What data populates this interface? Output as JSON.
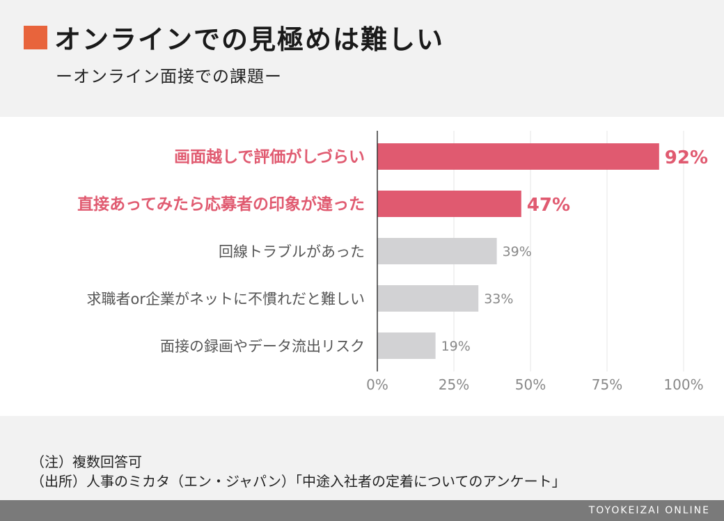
{
  "header": {
    "title": "オンラインでの見極めは難しい",
    "subtitle": "ーオンライン面接での課題ー",
    "accent_color": "#e8643c"
  },
  "chart_data": {
    "type": "bar",
    "orientation": "horizontal",
    "categories": [
      "画面越しで評価がしづらい",
      "直接あってみたら応募者の印象が違った",
      "回線トラブルがあった",
      "求職者or企業がネットに不慣れだと難しい",
      "面接の録画やデータ流出リスク"
    ],
    "values": [
      92,
      47,
      39,
      33,
      19
    ],
    "value_labels": [
      "92%",
      "47%",
      "39%",
      "33%",
      "19%"
    ],
    "highlighted": [
      true,
      true,
      false,
      false,
      false
    ],
    "highlight_color": "#e05a70",
    "base_color": "#d2d2d4",
    "xlim": [
      0,
      100
    ],
    "xticks": [
      0,
      25,
      50,
      75,
      100
    ],
    "xtick_labels": [
      "0%",
      "25%",
      "50%",
      "75%",
      "100%"
    ],
    "grid": true
  },
  "notes": {
    "line1": "（注）複数回答可",
    "line2": "（出所）人事のミカタ（エン・ジャパン）「中途入社者の定着についてのアンケート」"
  },
  "footer": {
    "brand": "TOYOKEIZAI ONLINE"
  }
}
